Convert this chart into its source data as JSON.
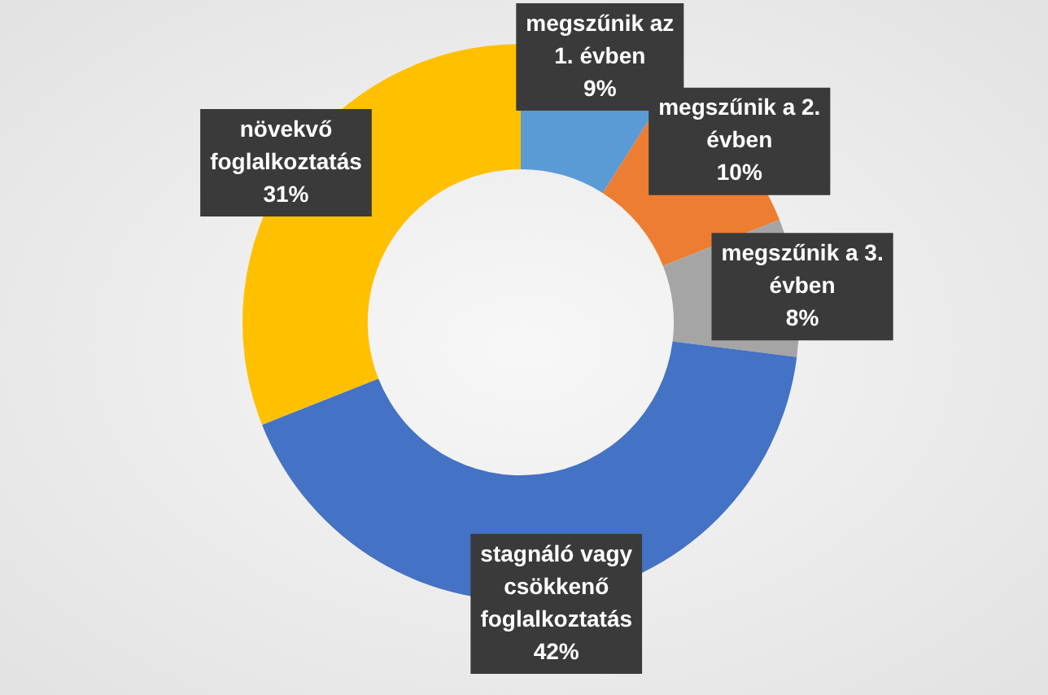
{
  "chart_data": {
    "type": "donut",
    "categories": [
      "megszűnik az 1. évben",
      "megszűnik a 2. évben",
      "megszűnik a 3. évben",
      "stagnáló vagy csökkenő foglalkoztatás",
      "növekvő foglalkoztatás"
    ],
    "values": [
      9,
      10,
      8,
      42,
      31
    ],
    "value_labels": [
      "9%",
      "10%",
      "8%",
      "42%",
      "31%"
    ],
    "colors": [
      "#5b9bd5",
      "#ed7d31",
      "#a5a5a5",
      "#4472c4",
      "#ffc000"
    ],
    "legend": false
  }
}
